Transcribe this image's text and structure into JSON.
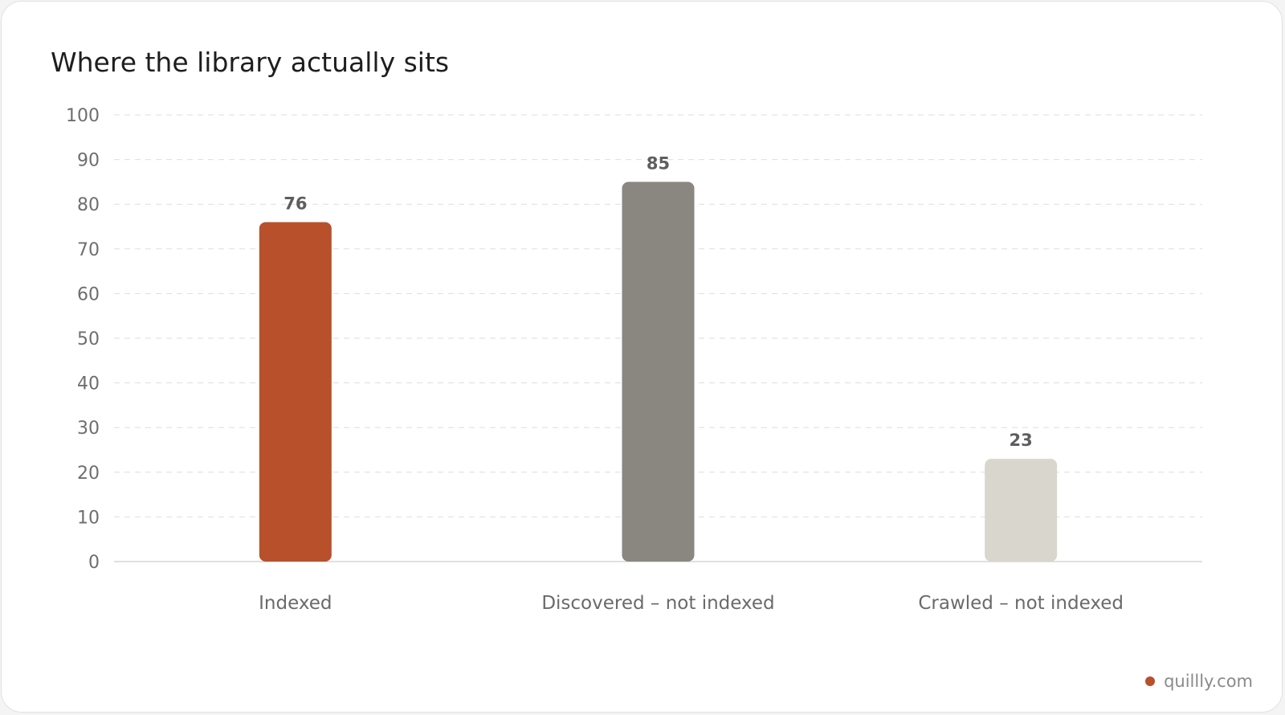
{
  "chart_data": {
    "type": "bar",
    "title": "Where the library actually sits",
    "categories": [
      "Indexed",
      "Discovered – not indexed",
      "Crawled – not indexed"
    ],
    "values": [
      76,
      85,
      23
    ],
    "bar_colors": [
      "#b8502c",
      "#8a8680",
      "#d9d6cd"
    ],
    "ylim": [
      0,
      100
    ],
    "yticks": [
      0,
      10,
      20,
      30,
      40,
      50,
      60,
      70,
      80,
      90,
      100
    ],
    "xlabel": "",
    "ylabel": "",
    "grid": true,
    "data_labels": true
  },
  "brand": {
    "text": "quillly.com",
    "dot_color": "#b8502c"
  }
}
